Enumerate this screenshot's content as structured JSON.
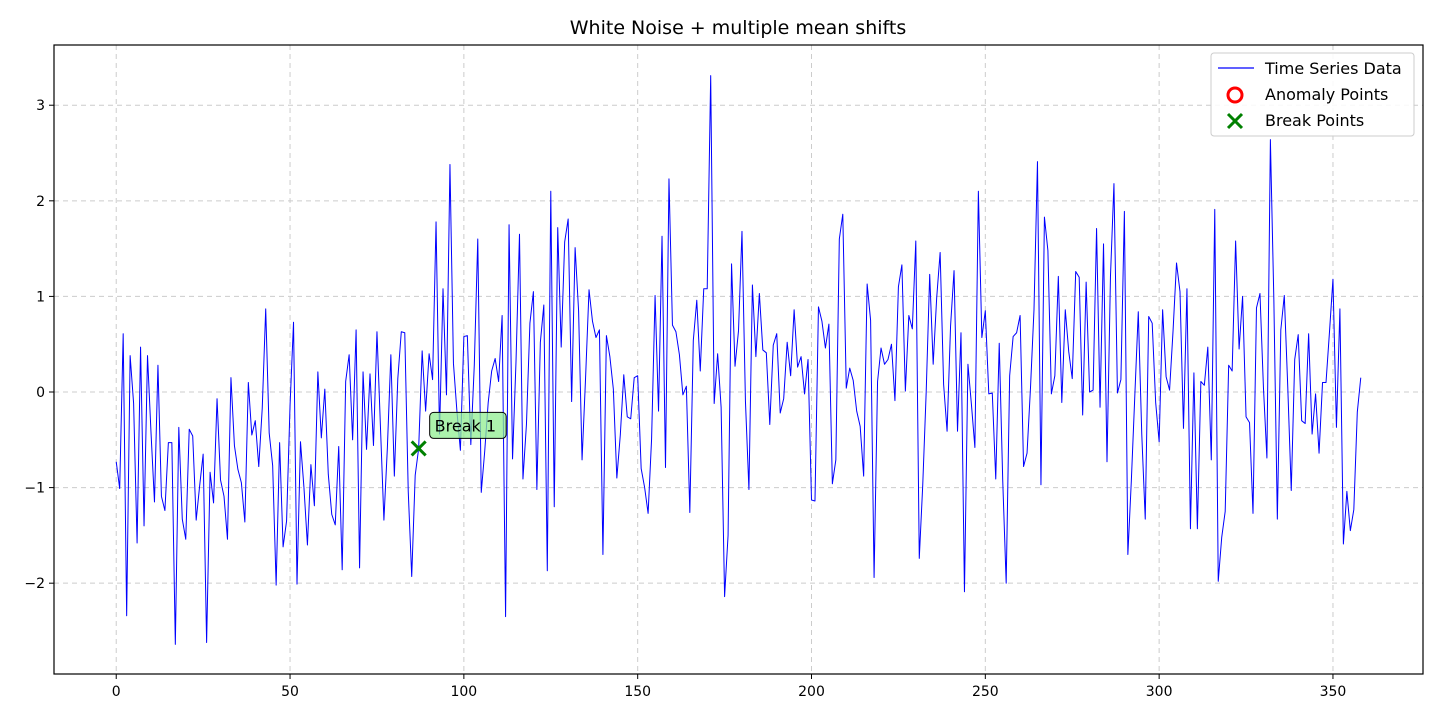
{
  "chart_data": {
    "type": "line",
    "title": "White Noise + multiple mean shifts",
    "xlabel": "",
    "ylabel": "",
    "xlim": [
      -17.9,
      375.9
    ],
    "ylim": [
      -2.95,
      3.63
    ],
    "xticks": [
      0,
      50,
      100,
      150,
      200,
      250,
      300,
      350
    ],
    "yticks": [
      -2,
      -1,
      0,
      1,
      2,
      3
    ],
    "grid": true,
    "legend_position": "top-right",
    "series": [
      {
        "name": "Time Series Data",
        "color": "#0000ff",
        "x_start": 0,
        "x_step": 1,
        "values": [
          -0.73,
          -1.01,
          0.61,
          -2.34,
          0.38,
          -0.12,
          -1.58,
          0.47,
          -1.4,
          0.38,
          -0.42,
          -1.15,
          0.28,
          -1.09,
          -1.24,
          -0.53,
          -0.53,
          -2.64,
          -0.37,
          -1.33,
          -1.54,
          -0.39,
          -0.46,
          -1.34,
          -0.98,
          -0.65,
          -2.62,
          -0.84,
          -1.16,
          -0.07,
          -0.92,
          -1.09,
          -1.54,
          0.15,
          -0.56,
          -0.81,
          -0.95,
          -1.36,
          0.1,
          -0.45,
          -0.3,
          -0.78,
          -0.17,
          0.87,
          -0.43,
          -0.77,
          -2.02,
          -0.53,
          -1.62,
          -1.35,
          -0.14,
          0.73,
          -2.01,
          -0.52,
          -1.0,
          -1.6,
          -0.76,
          -1.19,
          0.21,
          -0.48,
          0.03,
          -0.86,
          -1.28,
          -1.39,
          -0.57,
          -1.86,
          0.11,
          0.39,
          -0.5,
          0.65,
          -1.84,
          0.21,
          -0.6,
          0.19,
          -0.56,
          0.63,
          -0.36,
          -1.34,
          -0.58,
          0.39,
          -0.88,
          0.14,
          0.63,
          0.62,
          -1.04,
          -1.93,
          -0.87,
          -0.59,
          0.43,
          -0.2,
          0.4,
          0.13,
          1.78,
          -0.44,
          1.08,
          -0.03,
          2.38,
          0.3,
          -0.2,
          -0.61,
          0.58,
          0.59,
          -0.55,
          0.28,
          1.6,
          -1.05,
          -0.62,
          -0.11,
          0.22,
          0.35,
          0.11,
          0.8,
          -2.35,
          1.75,
          -0.7,
          0.32,
          1.65,
          -0.91,
          -0.34,
          0.72,
          1.05,
          -1.02,
          0.52,
          0.91,
          -1.87,
          2.1,
          -1.2,
          1.72,
          0.47,
          1.57,
          1.81,
          -0.1,
          1.51,
          0.85,
          -0.71,
          0.14,
          1.07,
          0.74,
          0.57,
          0.65,
          -1.7,
          0.59,
          0.37,
          0.03,
          -0.9,
          -0.45,
          0.18,
          -0.26,
          -0.28,
          0.15,
          0.17,
          -0.8,
          -1.0,
          -1.27,
          -0.49,
          1.01,
          -0.2,
          1.63,
          -0.79,
          2.23,
          0.7,
          0.63,
          0.39,
          -0.03,
          0.06,
          -1.26,
          0.54,
          0.96,
          0.22,
          1.08,
          1.08,
          3.31,
          -0.12,
          0.4,
          -0.16,
          -2.14,
          -1.5,
          1.34,
          0.27,
          0.64,
          1.68,
          -0.1,
          -1.02,
          1.12,
          0.37,
          1.03,
          0.44,
          0.41,
          -0.34,
          0.49,
          0.61,
          -0.22,
          -0.07,
          0.52,
          0.17,
          0.86,
          0.26,
          0.37,
          -0.02,
          0.34,
          -1.13,
          -1.14,
          0.89,
          0.74,
          0.46,
          0.71,
          -0.96,
          -0.71,
          1.6,
          1.86,
          0.04,
          0.25,
          0.12,
          -0.2,
          -0.36,
          -0.88,
          1.13,
          0.75,
          -1.94,
          0.11,
          0.46,
          0.29,
          0.34,
          0.5,
          -0.09,
          1.1,
          1.33,
          0.01,
          0.8,
          0.66,
          1.58,
          -1.74,
          -0.97,
          0.01,
          1.23,
          0.29,
          0.98,
          1.46,
          0.08,
          -0.41,
          0.69,
          1.27,
          -0.41,
          0.62,
          -2.09,
          0.29,
          -0.13,
          -0.58,
          2.1,
          0.57,
          0.85,
          -0.02,
          -0.01,
          -0.91,
          0.51,
          -0.92,
          -2.0,
          0.17,
          0.58,
          0.62,
          0.8,
          -0.78,
          -0.64,
          0.05,
          0.86,
          2.41,
          -0.97,
          1.83,
          1.48,
          -0.02,
          0.17,
          1.21,
          -0.11,
          0.86,
          0.42,
          0.14,
          1.26,
          1.2,
          -0.24,
          1.15,
          0.0,
          0.02,
          1.71,
          -0.16,
          1.55,
          -0.73,
          1.21,
          2.18,
          -0.01,
          0.13,
          1.89,
          -1.7,
          -0.93,
          -0.04,
          0.84,
          -0.44,
          -1.33,
          0.79,
          0.72,
          -0.11,
          -0.52,
          0.86,
          0.16,
          0.02,
          0.64,
          1.35,
          1.05,
          -0.38,
          1.08,
          -1.43,
          0.2,
          -1.43,
          0.11,
          0.07,
          0.47,
          -0.71,
          1.91,
          -1.98,
          -1.52,
          -1.25,
          0.28,
          0.22,
          1.58,
          0.45,
          1.0,
          -0.26,
          -0.32,
          -1.27,
          0.88,
          1.03,
          0.05,
          -0.69,
          2.64,
          0.96,
          -1.33,
          0.65,
          1.01,
          0.05,
          -1.03,
          0.34,
          0.6,
          -0.3,
          -0.33,
          0.61,
          -0.44,
          -0.02,
          -0.64,
          0.1,
          0.1,
          0.63,
          1.18,
          -0.37,
          0.87,
          -1.59,
          -1.04,
          -1.45,
          -1.23,
          -0.21,
          0.15
        ]
      },
      {
        "name": "Anomaly Points",
        "color": "#ff0000",
        "marker": "open-circle",
        "points": []
      },
      {
        "name": "Break Points",
        "color": "#008000",
        "marker": "x",
        "points": [
          {
            "x": 87,
            "y": -0.59,
            "label": "Break 1"
          }
        ]
      }
    ],
    "annotation_box_color": "#90ee90"
  }
}
